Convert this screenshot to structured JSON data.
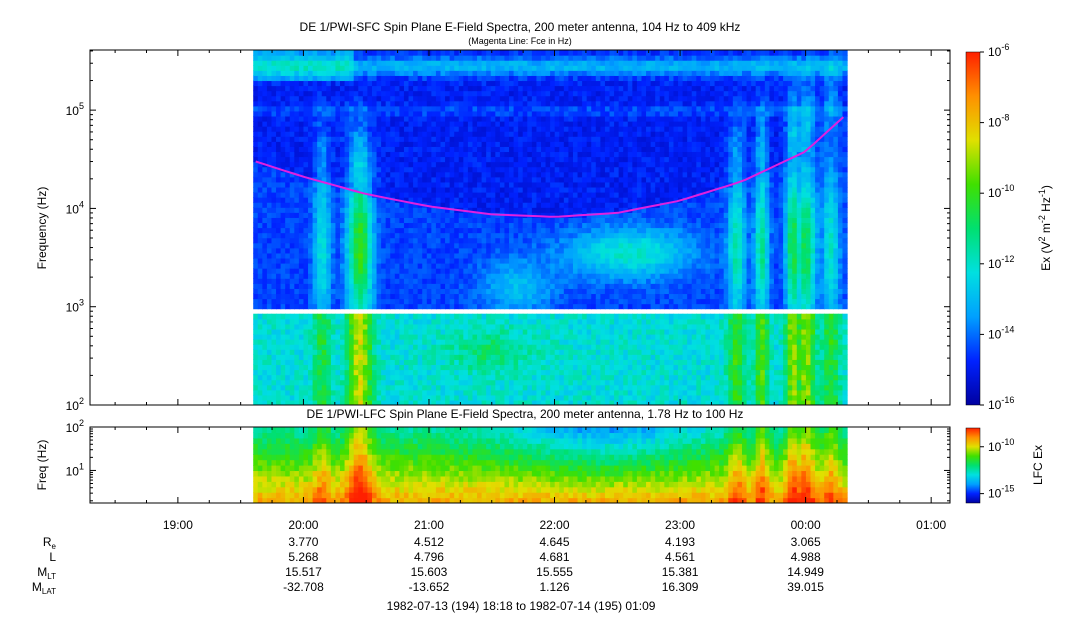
{
  "chart_data": [
    {
      "type": "heatmap",
      "title": "DE 1/PWI-SFC  Spin Plane E-Field Spectra, 200 meter antenna, 104 Hz to 409 kHz",
      "subtitle": "(Magenta Line: Fce in Hz)",
      "ylabel": "Frequency (Hz)",
      "yscale": "log",
      "ylim": [
        100,
        409000
      ],
      "yticks": [
        {
          "value": 100,
          "base": "10",
          "exp": "2"
        },
        {
          "value": 1000,
          "base": "10",
          "exp": "3"
        },
        {
          "value": 10000,
          "base": "10",
          "exp": "4"
        },
        {
          "value": 100000,
          "base": "10",
          "exp": "5"
        }
      ],
      "colorbar": {
        "label_prefix": "Ex (V",
        "label_sup1": "2",
        "label_mid": " m",
        "label_sup2": "-2",
        "label_mid2": " Hz",
        "label_sup3": "-1",
        "label_suffix": ")",
        "scale": "log",
        "range": [
          1e-16,
          1e-06
        ],
        "ticks": [
          {
            "value": 1e-06,
            "base": "10",
            "exp": "-6"
          },
          {
            "value": 1e-08,
            "base": "10",
            "exp": "-8"
          },
          {
            "value": 1e-10,
            "base": "10",
            "exp": "-10"
          },
          {
            "value": 1e-12,
            "base": "10",
            "exp": "-12"
          },
          {
            "value": 1e-14,
            "base": "10",
            "exp": "-14"
          },
          {
            "value": 1e-16,
            "base": "10",
            "exp": "-16"
          }
        ]
      },
      "data_time_range_hours": [
        19.6,
        24.33
      ],
      "data_gap_hz": [
        900,
        1000
      ],
      "fce_line": {
        "color": "#e020e0",
        "points": [
          [
            19.62,
            30000
          ],
          [
            20.0,
            21000
          ],
          [
            20.5,
            14000
          ],
          [
            21.0,
            10500
          ],
          [
            21.5,
            8700
          ],
          [
            22.0,
            8200
          ],
          [
            22.5,
            9000
          ],
          [
            23.0,
            12000
          ],
          [
            23.5,
            19000
          ],
          [
            24.0,
            38000
          ],
          [
            24.3,
            85000
          ]
        ]
      },
      "colormap": [
        "#0000a0",
        "#0022ff",
        "#00a0ff",
        "#00e0e0",
        "#00e070",
        "#40e000",
        "#e0e000",
        "#ff9000",
        "#ff2000"
      ]
    },
    {
      "type": "heatmap",
      "title": "DE 1/PWI-LFC  Spin Plane E-Field Spectra, 200 meter antenna, 1.78 Hz to 100 Hz",
      "ylabel": "Freq (Hz)",
      "yscale": "log",
      "ylim": [
        1.78,
        100
      ],
      "yticks": [
        {
          "value": 10,
          "base": "10",
          "exp": "1"
        },
        {
          "value": 100,
          "base": "10",
          "exp": "2"
        }
      ],
      "colorbar": {
        "label": "LFC Ex",
        "scale": "log",
        "range": [
          1e-16,
          1e-08
        ],
        "ticks": [
          {
            "value": 1e-10,
            "base": "10",
            "exp": "-10"
          },
          {
            "value": 1e-15,
            "base": "10",
            "exp": "-15"
          }
        ]
      },
      "data_time_range_hours": [
        19.6,
        24.33
      ]
    }
  ],
  "time_axis": {
    "xlim_hours": [
      18.3,
      25.15
    ],
    "ticks": [
      {
        "hour": 19,
        "label": "19:00"
      },
      {
        "hour": 20,
        "label": "20:00"
      },
      {
        "hour": 21,
        "label": "21:00"
      },
      {
        "hour": 22,
        "label": "22:00"
      },
      {
        "hour": 23,
        "label": "23:00"
      },
      {
        "hour": 24,
        "label": "00:00"
      },
      {
        "hour": 25,
        "label": "01:00"
      }
    ]
  },
  "ephemeris": {
    "hours": [
      20,
      21,
      22,
      23,
      24
    ],
    "rows": [
      {
        "label": "R",
        "sub": "e",
        "values": [
          "3.770",
          "4.512",
          "4.645",
          "4.193",
          "3.065"
        ]
      },
      {
        "label": "L",
        "sub": "",
        "values": [
          "5.268",
          "4.796",
          "4.681",
          "4.561",
          "4.988"
        ]
      },
      {
        "label": "M",
        "sub": "LT",
        "values": [
          "15.517",
          "15.603",
          "15.555",
          "15.381",
          "14.949"
        ]
      },
      {
        "label": "M",
        "sub": "LAT",
        "values": [
          "-32.708",
          "-13.652",
          "1.126",
          "16.309",
          "39.015"
        ]
      }
    ]
  },
  "date_range": "1982-07-13 (194) 18:18 to 1982-07-14 (195) 01:09"
}
